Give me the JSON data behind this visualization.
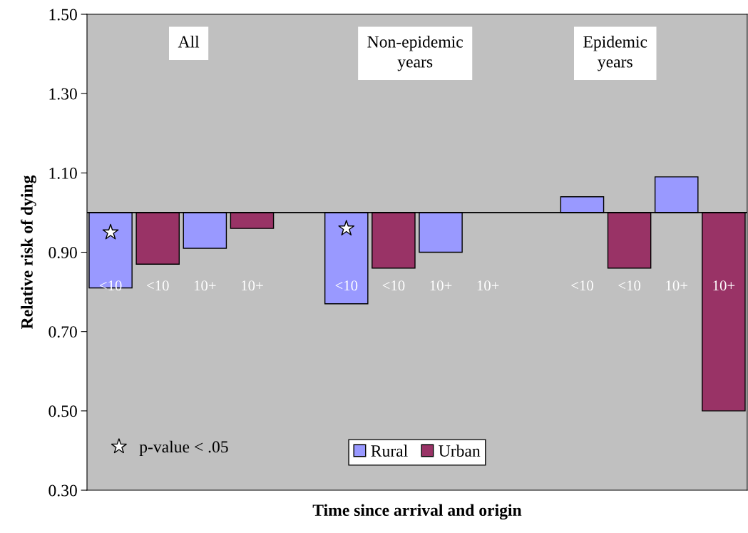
{
  "chart_data": {
    "type": "bar",
    "xlabel": "Time since arrival and origin",
    "ylabel": "Relative risk of dying",
    "categories": [
      "<10",
      "<10",
      "10+",
      "10+",
      null,
      "<10",
      "<10",
      "10+",
      "10+",
      null,
      "<10",
      "<10",
      "10+",
      "10+"
    ],
    "series": [
      {
        "name": "Rural",
        "color": "#9999ff",
        "base": [
          1.0,
          null,
          1.0,
          null,
          null,
          1.0,
          null,
          1.0,
          null,
          null,
          1.0,
          null,
          1.0,
          null
        ],
        "values": [
          -0.19,
          null,
          -0.09,
          null,
          null,
          -0.23,
          null,
          -0.1,
          null,
          null,
          0.04,
          null,
          0.09,
          null
        ]
      },
      {
        "name": "Urban",
        "color": "#993366",
        "base": [
          null,
          1.0,
          null,
          1.0,
          null,
          null,
          1.0,
          null,
          null,
          null,
          null,
          1.0,
          null,
          1.0
        ],
        "values": [
          null,
          -0.13,
          null,
          -0.04,
          null,
          null,
          -0.14,
          null,
          null,
          null,
          null,
          -0.14,
          null,
          -0.5
        ]
      },
      {
        "name": "p-value < .05",
        "type": "scatter",
        "marker": "star",
        "color": "#ffffff",
        "values": [
          0.95,
          null,
          null,
          null,
          null,
          0.96,
          null,
          null,
          null,
          null,
          null,
          null,
          null,
          null
        ]
      }
    ],
    "ylim": [
      0.3,
      1.5
    ],
    "yticks": [
      {
        "value": 0.3,
        "label": "0.30"
      },
      {
        "value": 0.5,
        "label": "0.50"
      },
      {
        "value": 0.7,
        "label": "0.70"
      },
      {
        "value": 0.9,
        "label": "0.90"
      },
      {
        "value": 1.1,
        "label": "1.10"
      },
      {
        "value": 1.3,
        "label": "1.30"
      },
      {
        "value": 1.5,
        "label": "1.50"
      }
    ],
    "ref_lines": [
      {
        "axis": "y",
        "value": 1.0,
        "color": "#000000"
      }
    ],
    "annotations": [
      "All",
      "Non-epidemic\nyears",
      "Epidemic\nyears"
    ],
    "legend": "bottom",
    "grid": false
  }
}
